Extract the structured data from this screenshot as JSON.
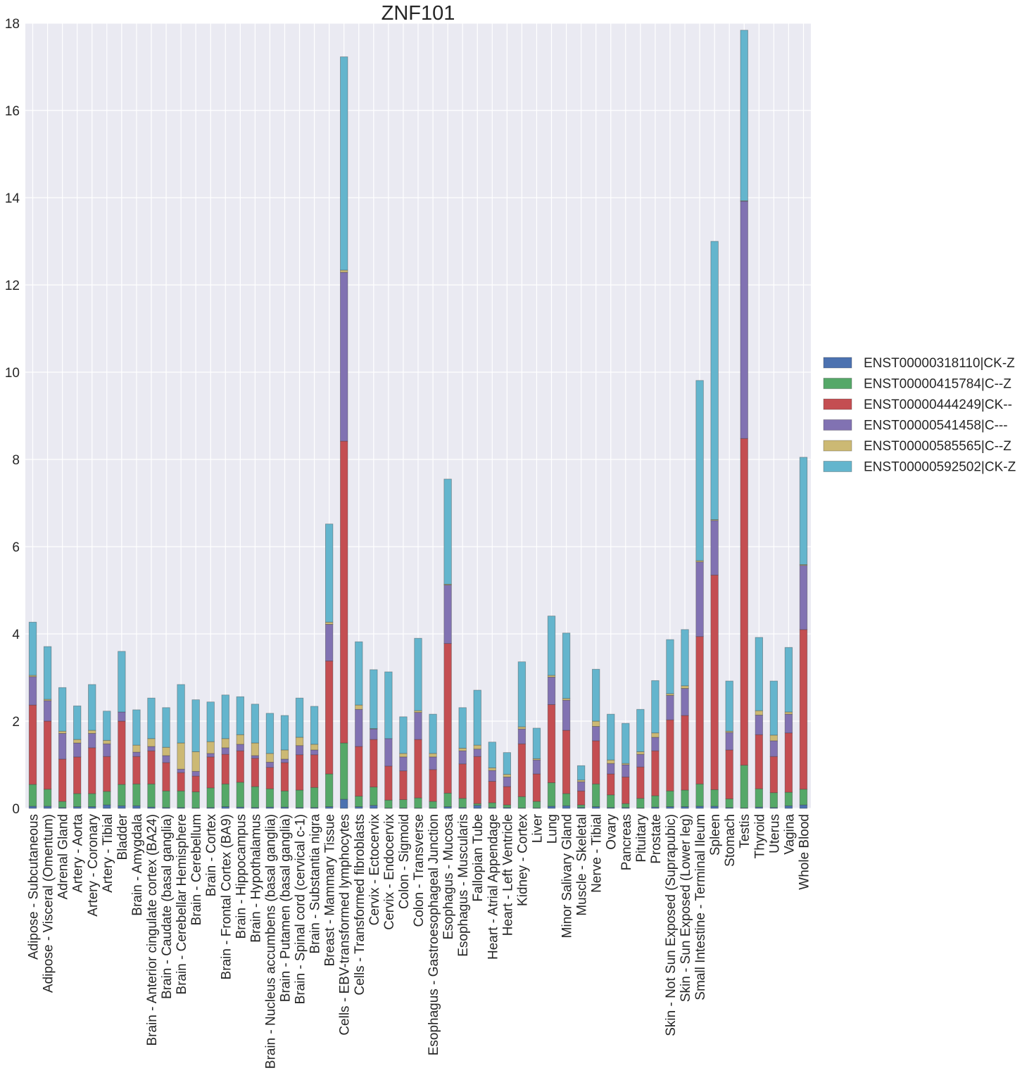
{
  "chart_data": {
    "type": "bar",
    "stacked": true,
    "title": "ZNF101",
    "xlabel": "",
    "ylabel": "",
    "ylim": [
      0,
      18
    ],
    "yticks": [
      0,
      2,
      4,
      6,
      8,
      10,
      12,
      14,
      16,
      18
    ],
    "grid": true,
    "legend_position": "right",
    "categories": [
      "Adipose - Subcutaneous",
      "Adipose - Visceral (Omentum)",
      "Adrenal Gland",
      "Artery - Aorta",
      "Artery - Coronary",
      "Artery - Tibial",
      "Bladder",
      "Brain - Amygdala",
      "Brain - Anterior cingulate cortex (BA24)",
      "Brain - Caudate (basal ganglia)",
      "Brain - Cerebellar Hemisphere",
      "Brain - Cerebellum",
      "Brain - Cortex",
      "Brain - Frontal Cortex (BA9)",
      "Brain - Hippocampus",
      "Brain - Hypothalamus",
      "Brain - Nucleus accumbens (basal ganglia)",
      "Brain - Putamen (basal ganglia)",
      "Brain - Spinal cord (cervical c-1)",
      "Brain - Substantia nigra",
      "Breast - Mammary Tissue",
      "Cells - EBV-transformed lymphocytes",
      "Cells - Transformed fibroblasts",
      "Cervix - Ectocervix",
      "Cervix - Endocervix",
      "Colon - Sigmoid",
      "Colon - Transverse",
      "Esophagus - Gastroesophageal Junction",
      "Esophagus - Mucosa",
      "Esophagus - Muscularis",
      "Fallopian Tube",
      "Heart - Atrial Appendage",
      "Heart - Left Ventricle",
      "Kidney - Cortex",
      "Liver",
      "Lung",
      "Minor Salivary Gland",
      "Muscle - Skeletal",
      "Nerve - Tibial",
      "Ovary",
      "Pancreas",
      "Pituitary",
      "Prostate",
      "Skin - Not Sun Exposed (Suprapubic)",
      "Skin - Sun Exposed (Lower leg)",
      "Small Intestine - Terminal Ileum",
      "Spleen",
      "Stomach",
      "Testis",
      "Thyroid",
      "Uterus",
      "Vagina",
      "Whole Blood"
    ],
    "series": [
      {
        "name": "ENST00000318110|CK-Z",
        "color": "#4c72b0",
        "values": [
          0.05,
          0.05,
          0.02,
          0.04,
          0.04,
          0.08,
          0.06,
          0.06,
          0.03,
          0.02,
          0.02,
          0.01,
          0.02,
          0.04,
          0.03,
          0.02,
          0.03,
          0.03,
          0.02,
          0.02,
          0.04,
          0.21,
          0.04,
          0.07,
          0.01,
          0.01,
          0.01,
          0.01,
          0.04,
          0.02,
          0.07,
          0.02,
          0.02,
          0.01,
          0.01,
          0.05,
          0.06,
          0.02,
          0.04,
          0.02,
          0.02,
          0.01,
          0.03,
          0.04,
          0.04,
          0.05,
          0.05,
          0.02,
          0.01,
          0.03,
          0.02,
          0.06,
          0.08
        ]
      },
      {
        "name": "ENST00000415784|C--Z",
        "color": "#55a868",
        "values": [
          0.5,
          0.39,
          0.14,
          0.3,
          0.3,
          0.31,
          0.49,
          0.5,
          0.53,
          0.38,
          0.38,
          0.37,
          0.45,
          0.52,
          0.57,
          0.48,
          0.42,
          0.37,
          0.4,
          0.46,
          0.75,
          1.29,
          0.24,
          0.42,
          0.18,
          0.19,
          0.23,
          0.15,
          0.31,
          0.21,
          0.04,
          0.11,
          0.06,
          0.26,
          0.15,
          0.54,
          0.28,
          0.06,
          0.52,
          0.29,
          0.09,
          0.22,
          0.26,
          0.36,
          0.38,
          0.51,
          0.38,
          0.2,
          0.98,
          0.42,
          0.34,
          0.31,
          0.36
        ]
      },
      {
        "name": "ENST00000444249|CK--",
        "color": "#c44e52",
        "values": [
          1.82,
          1.56,
          0.97,
          0.84,
          1.05,
          0.8,
          1.45,
          0.63,
          0.76,
          0.65,
          0.42,
          0.36,
          0.71,
          0.68,
          0.72,
          0.65,
          0.49,
          0.65,
          0.81,
          0.75,
          2.59,
          6.92,
          1.14,
          1.09,
          0.78,
          0.66,
          1.34,
          0.73,
          3.43,
          0.79,
          1.08,
          0.49,
          0.42,
          1.21,
          0.63,
          1.79,
          1.45,
          0.32,
          0.99,
          0.48,
          0.61,
          0.72,
          1.03,
          1.63,
          1.71,
          3.38,
          4.92,
          1.12,
          7.49,
          1.24,
          0.83,
          1.36,
          3.66
        ]
      },
      {
        "name": "ENST00000541458|C---",
        "color": "#8172b2",
        "values": [
          0.65,
          0.47,
          0.59,
          0.32,
          0.33,
          0.29,
          0.21,
          0.1,
          0.1,
          0.16,
          0.08,
          0.11,
          0.08,
          0.15,
          0.15,
          0.06,
          0.12,
          0.08,
          0.21,
          0.11,
          0.84,
          3.87,
          0.85,
          0.24,
          0.63,
          0.32,
          0.62,
          0.29,
          1.34,
          0.3,
          0.17,
          0.25,
          0.22,
          0.34,
          0.32,
          0.63,
          0.69,
          0.21,
          0.33,
          0.24,
          0.28,
          0.29,
          0.31,
          0.56,
          0.62,
          1.71,
          1.25,
          0.4,
          5.44,
          0.45,
          0.36,
          0.43,
          1.47
        ]
      },
      {
        "name": "ENST00000585565|C--Z",
        "color": "#ccb974",
        "values": [
          0.03,
          0.03,
          0.05,
          0.08,
          0.07,
          0.08,
          0.0,
          0.16,
          0.18,
          0.19,
          0.6,
          0.45,
          0.27,
          0.21,
          0.22,
          0.29,
          0.2,
          0.21,
          0.19,
          0.13,
          0.05,
          0.05,
          0.1,
          0.01,
          0.0,
          0.08,
          0.04,
          0.08,
          0.02,
          0.06,
          0.09,
          0.06,
          0.06,
          0.05,
          0.03,
          0.04,
          0.04,
          0.04,
          0.12,
          0.08,
          0.03,
          0.06,
          0.1,
          0.04,
          0.06,
          0.03,
          0.02,
          0.03,
          0.01,
          0.1,
          0.13,
          0.05,
          0.02
        ]
      },
      {
        "name": "ENST00000592502|CK-Z",
        "color": "#64b5cd",
        "values": [
          1.22,
          1.21,
          1.0,
          0.77,
          1.05,
          0.67,
          1.39,
          0.81,
          0.93,
          0.91,
          1.34,
          1.19,
          0.91,
          1.0,
          0.87,
          0.89,
          0.92,
          0.79,
          0.9,
          0.87,
          2.25,
          4.89,
          1.45,
          1.35,
          1.53,
          0.84,
          1.66,
          0.9,
          2.41,
          0.93,
          1.26,
          0.59,
          0.5,
          1.49,
          0.7,
          1.36,
          1.5,
          0.33,
          1.19,
          1.05,
          0.92,
          0.97,
          1.2,
          1.24,
          1.29,
          4.13,
          6.38,
          1.15,
          3.91,
          1.68,
          1.24,
          1.48,
          2.46
        ]
      }
    ]
  }
}
